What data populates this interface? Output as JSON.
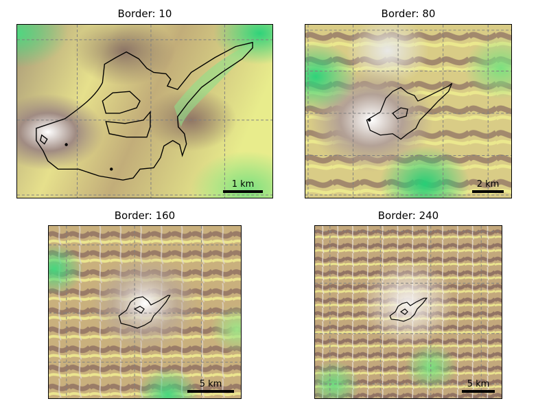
{
  "panels": [
    {
      "title": "Border: 10",
      "scale_label": "1 km"
    },
    {
      "title": "Border: 80",
      "scale_label": "2 km"
    },
    {
      "title": "Border: 160",
      "scale_label": "5 km"
    },
    {
      "title": "Border: 240",
      "scale_label": "5 km"
    }
  ],
  "colors": {
    "low": "#2fd37a",
    "mid_low": "#eef08e",
    "mid": "#c8b478",
    "high": "#86675e",
    "peak": "#ffffff",
    "grid": "#808080",
    "outline": "#000000"
  },
  "icons": {
    "outline": "glacier-outline-shape"
  }
}
